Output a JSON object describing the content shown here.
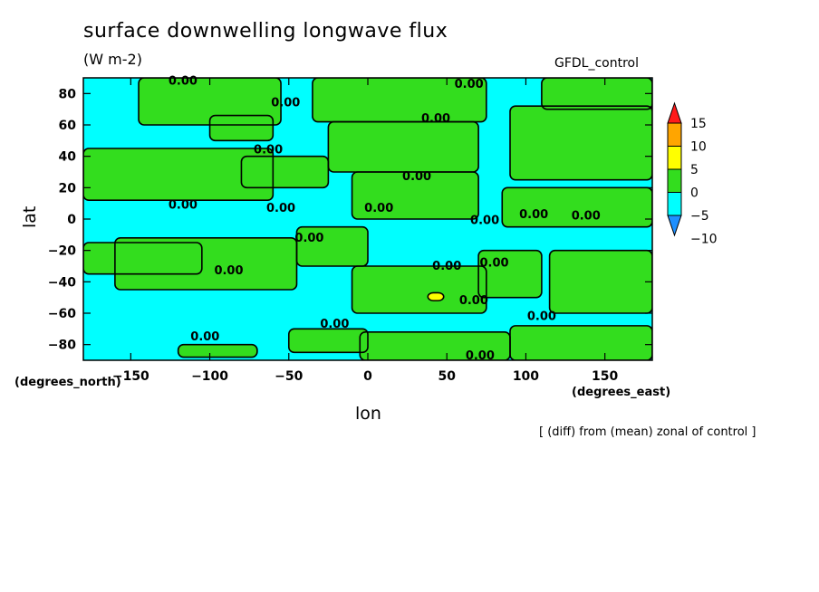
{
  "chart_data": {
    "type": "heatmap",
    "title": "surface downwelling longwave flux",
    "units": "(W m-2)",
    "dataset": "GFDL_control",
    "note": "[ (diff) from (mean) zonal of control ]",
    "xlabel": "lon",
    "ylabel": "lat",
    "x_unit_label": "(degrees_east)",
    "y_unit_label": "(degrees_north)",
    "xlim": [
      -180,
      180
    ],
    "ylim": [
      -90,
      90
    ],
    "x_ticks": [
      -150,
      -100,
      -50,
      0,
      50,
      100,
      150
    ],
    "x_tick_labels": [
      "−150",
      "−100",
      "−50",
      "0",
      "50",
      "100",
      "150"
    ],
    "y_ticks": [
      -80,
      -60,
      -40,
      -20,
      0,
      20,
      40,
      60,
      80
    ],
    "y_tick_labels": [
      "−80",
      "−60",
      "−40",
      "−20",
      "0",
      "20",
      "40",
      "60",
      "80"
    ],
    "colorbar": {
      "levels": [
        -10,
        -5,
        0,
        5,
        10,
        15
      ],
      "labels": [
        "−10",
        "−5",
        "0",
        "5",
        "10",
        "15"
      ],
      "colors": [
        "#1e90ff",
        "#00ffff",
        "#33dd1e",
        "#ffff00",
        "#ffa500",
        "#ff1a1a"
      ],
      "extend": "both"
    },
    "contour_label_text": "0.00",
    "contour_labels": [
      {
        "lon": -117,
        "lat": 88
      },
      {
        "lon": 64,
        "lat": 86
      },
      {
        "lon": -52,
        "lat": 74
      },
      {
        "lon": 43,
        "lat": 64
      },
      {
        "lon": -63,
        "lat": 44
      },
      {
        "lon": 31,
        "lat": 27
      },
      {
        "lon": -117,
        "lat": 9
      },
      {
        "lon": -55,
        "lat": 7
      },
      {
        "lon": 7,
        "lat": 7
      },
      {
        "lon": 74,
        "lat": -1
      },
      {
        "lon": 105,
        "lat": 3
      },
      {
        "lon": 138,
        "lat": 2
      },
      {
        "lon": -37,
        "lat": -12
      },
      {
        "lon": 50,
        "lat": -30
      },
      {
        "lon": 80,
        "lat": -28
      },
      {
        "lon": -88,
        "lat": -33
      },
      {
        "lon": 67,
        "lat": -52
      },
      {
        "lon": -21,
        "lat": -67
      },
      {
        "lon": 110,
        "lat": -62
      },
      {
        "lon": -103,
        "lat": -75
      },
      {
        "lon": 71,
        "lat": -87
      }
    ],
    "regions": [
      {
        "value": -2.5,
        "lon": [
          -180,
          180
        ],
        "lat": [
          -90,
          90
        ]
      },
      {
        "value": 2.5,
        "lon": [
          -145,
          -55
        ],
        "lat": [
          60,
          90
        ]
      },
      {
        "value": 2.5,
        "lon": [
          -35,
          75
        ],
        "lat": [
          62,
          90
        ]
      },
      {
        "value": 2.5,
        "lon": [
          110,
          180
        ],
        "lat": [
          70,
          90
        ]
      },
      {
        "value": 2.5,
        "lon": [
          -100,
          -60
        ],
        "lat": [
          50,
          66
        ]
      },
      {
        "value": 2.5,
        "lon": [
          -25,
          70
        ],
        "lat": [
          30,
          62
        ]
      },
      {
        "value": 2.5,
        "lon": [
          90,
          180
        ],
        "lat": [
          25,
          72
        ]
      },
      {
        "value": 2.5,
        "lon": [
          -180,
          -60
        ],
        "lat": [
          12,
          45
        ]
      },
      {
        "value": 2.5,
        "lon": [
          -80,
          -25
        ],
        "lat": [
          20,
          40
        ]
      },
      {
        "value": 2.5,
        "lon": [
          -10,
          70
        ],
        "lat": [
          0,
          30
        ]
      },
      {
        "value": 2.5,
        "lon": [
          85,
          180
        ],
        "lat": [
          -5,
          20
        ]
      },
      {
        "value": 2.5,
        "lon": [
          -160,
          -45
        ],
        "lat": [
          -45,
          -12
        ]
      },
      {
        "value": 2.5,
        "lon": [
          -45,
          0
        ],
        "lat": [
          -30,
          -5
        ]
      },
      {
        "value": 2.5,
        "lon": [
          -10,
          75
        ],
        "lat": [
          -60,
          -30
        ]
      },
      {
        "value": 2.5,
        "lon": [
          115,
          180
        ],
        "lat": [
          -60,
          -20
        ]
      },
      {
        "value": 2.5,
        "lon": [
          70,
          110
        ],
        "lat": [
          -50,
          -20
        ]
      },
      {
        "value": 2.5,
        "lon": [
          -180,
          -105
        ],
        "lat": [
          -35,
          -15
        ]
      },
      {
        "value": 2.5,
        "lon": [
          -5,
          90
        ],
        "lat": [
          -90,
          -72
        ]
      },
      {
        "value": 2.5,
        "lon": [
          -50,
          0
        ],
        "lat": [
          -85,
          -70
        ]
      },
      {
        "value": 2.5,
        "lon": [
          90,
          180
        ],
        "lat": [
          -90,
          -68
        ]
      },
      {
        "value": 2.5,
        "lon": [
          -120,
          -70
        ],
        "lat": [
          -88,
          -80
        ]
      },
      {
        "value": 7.5,
        "lon": [
          38,
          48
        ],
        "lat": [
          -52,
          -47
        ]
      }
    ]
  }
}
